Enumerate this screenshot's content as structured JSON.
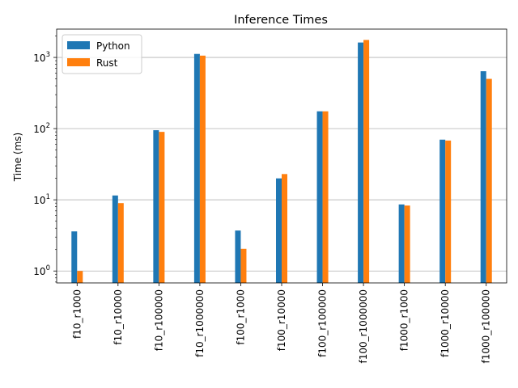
{
  "chart_data": {
    "type": "bar",
    "title": "Inference Times",
    "xlabel": "",
    "ylabel": "Time (ms)",
    "yscale": "log",
    "ylim": [
      0.68,
      2500
    ],
    "ytick_labels": [
      {
        "base": "10",
        "exp": "0"
      },
      {
        "base": "10",
        "exp": "1"
      },
      {
        "base": "10",
        "exp": "2"
      },
      {
        "base": "10",
        "exp": "3"
      }
    ],
    "ytick_values": [
      1,
      10,
      100,
      1000
    ],
    "grid": "y-major",
    "legend": "top-left",
    "categories": [
      "f10_r1000",
      "f10_r10000",
      "f10_r100000",
      "f10_r1000000",
      "f100_r1000",
      "f100_r10000",
      "f100_r100000",
      "f100_r1000000",
      "f1000_r1000",
      "f1000_r10000",
      "f1000_r100000"
    ],
    "series": [
      {
        "name": "Python",
        "color": "#1f77b4",
        "values": [
          3.6,
          11.5,
          95,
          1120,
          3.7,
          20,
          175,
          1620,
          8.6,
          70,
          640
        ]
      },
      {
        "name": "Rust",
        "color": "#ff7f0e",
        "values": [
          1.0,
          9.0,
          90,
          1060,
          2.05,
          23,
          175,
          1760,
          8.3,
          68,
          500
        ]
      }
    ]
  }
}
